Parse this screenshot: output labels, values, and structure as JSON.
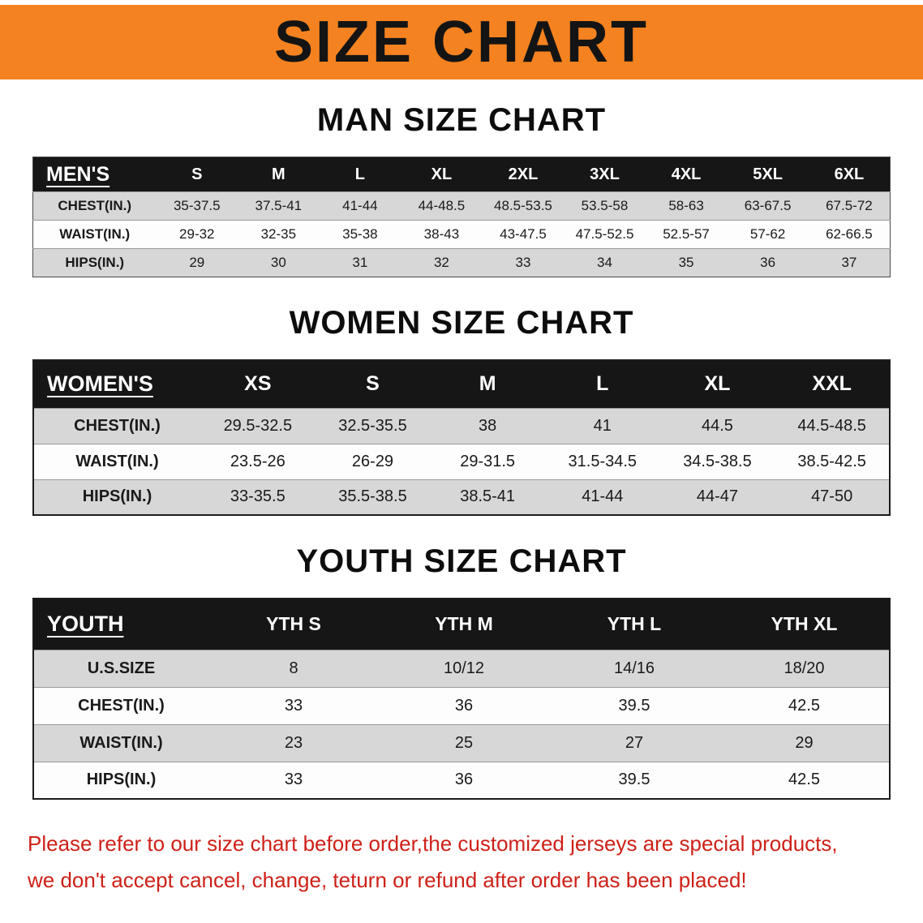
{
  "banner": {
    "title": "SIZE CHART",
    "bg_color": "#f58220"
  },
  "sections": [
    {
      "heading": "MAN SIZE CHART",
      "table": {
        "header": [
          "MEN'S",
          "S",
          "M",
          "L",
          "XL",
          "2XL",
          "3XL",
          "4XL",
          "5XL",
          "6XL"
        ],
        "rows": [
          [
            "CHEST(IN.)",
            "35-37.5",
            "37.5-41",
            "41-44",
            "44-48.5",
            "48.5-53.5",
            "53.5-58",
            "58-63",
            "63-67.5",
            "67.5-72"
          ],
          [
            "WAIST(IN.)",
            "29-32",
            "32-35",
            "35-38",
            "38-43",
            "43-47.5",
            "47.5-52.5",
            "52.5-57",
            "57-62",
            "62-66.5"
          ],
          [
            "HIPS(IN.)",
            "29",
            "30",
            "31",
            "32",
            "33",
            "34",
            "35",
            "36",
            "37"
          ]
        ]
      }
    },
    {
      "heading": "WOMEN SIZE CHART",
      "table": {
        "header": [
          "WOMEN'S",
          "XS",
          "S",
          "M",
          "L",
          "XL",
          "XXL"
        ],
        "rows": [
          [
            "CHEST(IN.)",
            "29.5-32.5",
            "32.5-35.5",
            "38",
            "41",
            "44.5",
            "44.5-48.5"
          ],
          [
            "WAIST(IN.)",
            "23.5-26",
            "26-29",
            "29-31.5",
            "31.5-34.5",
            "34.5-38.5",
            "38.5-42.5"
          ],
          [
            "HIPS(IN.)",
            "33-35.5",
            "35.5-38.5",
            "38.5-41",
            "41-44",
            "44-47",
            "47-50"
          ]
        ]
      }
    },
    {
      "heading": "YOUTH SIZE CHART",
      "table": {
        "header": [
          "YOUTH",
          "YTH S",
          "YTH M",
          "YTH L",
          "YTH XL"
        ],
        "rows": [
          [
            "U.S.SIZE",
            "8",
            "10/12",
            "14/16",
            "18/20"
          ],
          [
            "CHEST(IN.)",
            "33",
            "36",
            "39.5",
            "42.5"
          ],
          [
            "WAIST(IN.)",
            "23",
            "25",
            "27",
            "29"
          ],
          [
            "HIPS(IN.)",
            "33",
            "36",
            "39.5",
            "42.5"
          ]
        ]
      }
    }
  ],
  "disclaimer": {
    "line1": "Please refer to our size chart before order,the customized jerseys are special products,",
    "line2": "we don't accept cancel, change, teturn or refund after order has been placed!",
    "color": "#cd2118"
  }
}
